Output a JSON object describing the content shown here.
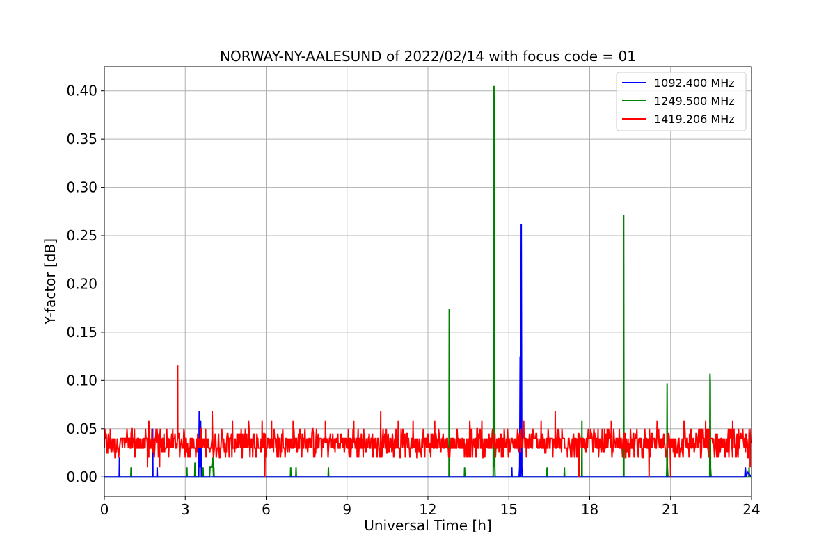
{
  "chart_data": {
    "type": "line",
    "title": "NORWAY-NY-AALESUND of 2022/02/14 with focus code = 01",
    "xlabel": "Universal Time [h]",
    "ylabel": "Y-factor [dB]",
    "xlim": [
      0,
      24
    ],
    "ylim": [
      -0.02,
      0.425
    ],
    "xticks": [
      0,
      3,
      6,
      9,
      12,
      15,
      18,
      21,
      24
    ],
    "xtick_labels": [
      "0",
      "3",
      "6",
      "9",
      "12",
      "15",
      "18",
      "21",
      "24"
    ],
    "yticks": [
      0.0,
      0.05,
      0.1,
      0.15,
      0.2,
      0.25,
      0.3,
      0.35,
      0.4
    ],
    "ytick_labels": [
      "0.00",
      "0.05",
      "0.10",
      "0.15",
      "0.20",
      "0.25",
      "0.30",
      "0.35",
      "0.40"
    ],
    "grid": true,
    "legend_position": "top-right",
    "series": [
      {
        "name": "1092.400 MHz",
        "color": "#0000ff",
        "x": [
          0,
          0.55,
          0.56,
          0.57,
          1.78,
          1.79,
          1.8,
          1.95,
          1.96,
          1.97,
          3.5,
          3.52,
          3.55,
          3.57,
          3.6,
          3.62,
          15.1,
          15.11,
          15.12,
          15.38,
          15.4,
          15.42,
          15.44,
          15.46,
          15.48,
          15.5,
          15.52,
          23.75,
          23.77,
          23.8,
          23.85,
          24
        ],
        "y": [
          0,
          0,
          0.02,
          0,
          0,
          0.05,
          0,
          0,
          0.01,
          0,
          0,
          0.068,
          0.01,
          0.058,
          0,
          0,
          0,
          0.01,
          0,
          0,
          0.01,
          0.125,
          0,
          0.262,
          0.01,
          0,
          0,
          0,
          0.01,
          0,
          0.005,
          0
        ]
      },
      {
        "name": "1249.500 MHz",
        "color": "#008000",
        "x": [
          0,
          0.98,
          0.99,
          1.0,
          3.05,
          3.06,
          3.07,
          3.35,
          3.36,
          3.37,
          3.65,
          3.66,
          3.67,
          3.9,
          3.92,
          3.95,
          3.98,
          4.02,
          4.05,
          4.06,
          4.07,
          6.9,
          6.91,
          6.92,
          7.1,
          7.11,
          7.12,
          8.3,
          8.31,
          8.32,
          12.78,
          12.79,
          12.8,
          13.35,
          13.36,
          13.37,
          14.42,
          14.43,
          14.44,
          14.45,
          14.46,
          14.47,
          14.48,
          14.49,
          14.5,
          16.4,
          16.42,
          16.44,
          17.05,
          17.06,
          17.07,
          17.7,
          17.71,
          17.72,
          19.25,
          19.26,
          19.27,
          20.85,
          20.86,
          20.87,
          20.88,
          20.9,
          22.45,
          22.46,
          22.47,
          22.48,
          22.5,
          23.9,
          23.91,
          23.92,
          24
        ],
        "y": [
          0,
          0,
          0.01,
          0,
          0,
          0.01,
          0,
          0,
          0.015,
          0,
          0,
          0.01,
          0,
          0,
          0.01,
          0.01,
          0.01,
          0.02,
          0,
          0.01,
          0,
          0,
          0.01,
          0,
          0,
          0.01,
          0,
          0,
          0.01,
          0,
          0,
          0.174,
          0,
          0,
          0.01,
          0,
          0,
          0.309,
          0.01,
          0.405,
          0.349,
          0.395,
          0.01,
          0,
          0,
          0,
          0.01,
          0,
          0,
          0.01,
          0,
          0,
          0.058,
          0,
          0,
          0.271,
          0,
          0,
          0.01,
          0.097,
          0.01,
          0,
          0,
          0.107,
          0.098,
          0.01,
          0,
          0,
          0.01,
          0,
          0
        ]
      },
      {
        "name": "1419.206 MHz",
        "color": "#ff0000",
        "baseline": [
          0.02,
          0.045
        ],
        "spikes": [
          {
            "x": 1.65,
            "y": 0.058
          },
          {
            "x": 1.6,
            "y": 0.01
          },
          {
            "x": 2.72,
            "y": 0.116
          },
          {
            "x": 2.05,
            "y": 0.01
          },
          {
            "x": 4.0,
            "y": 0.068
          },
          {
            "x": 4.75,
            "y": 0.058
          },
          {
            "x": 5.35,
            "y": 0.058
          },
          {
            "x": 5.85,
            "y": 0.058
          },
          {
            "x": 5.95,
            "y": 0.0
          },
          {
            "x": 6.2,
            "y": 0.058
          },
          {
            "x": 7.0,
            "y": 0.058
          },
          {
            "x": 8.2,
            "y": 0.058
          },
          {
            "x": 9.25,
            "y": 0.058
          },
          {
            "x": 10.25,
            "y": 0.068
          },
          {
            "x": 10.9,
            "y": 0.058
          },
          {
            "x": 11.45,
            "y": 0.058
          },
          {
            "x": 12.25,
            "y": 0.058
          },
          {
            "x": 13.55,
            "y": 0.058
          },
          {
            "x": 14.0,
            "y": 0.058
          },
          {
            "x": 15.55,
            "y": 0.058
          },
          {
            "x": 16.2,
            "y": 0.058
          },
          {
            "x": 16.72,
            "y": 0.068
          },
          {
            "x": 17.6,
            "y": 0.0
          },
          {
            "x": 18.8,
            "y": 0.058
          },
          {
            "x": 20.2,
            "y": 0.0
          },
          {
            "x": 20.5,
            "y": 0.058
          },
          {
            "x": 21.0,
            "y": 0.0
          },
          {
            "x": 21.5,
            "y": 0.058
          },
          {
            "x": 22.3,
            "y": 0.058
          },
          {
            "x": 23.3,
            "y": 0.058
          },
          {
            "x": 23.95,
            "y": 0.01
          }
        ]
      }
    ]
  }
}
